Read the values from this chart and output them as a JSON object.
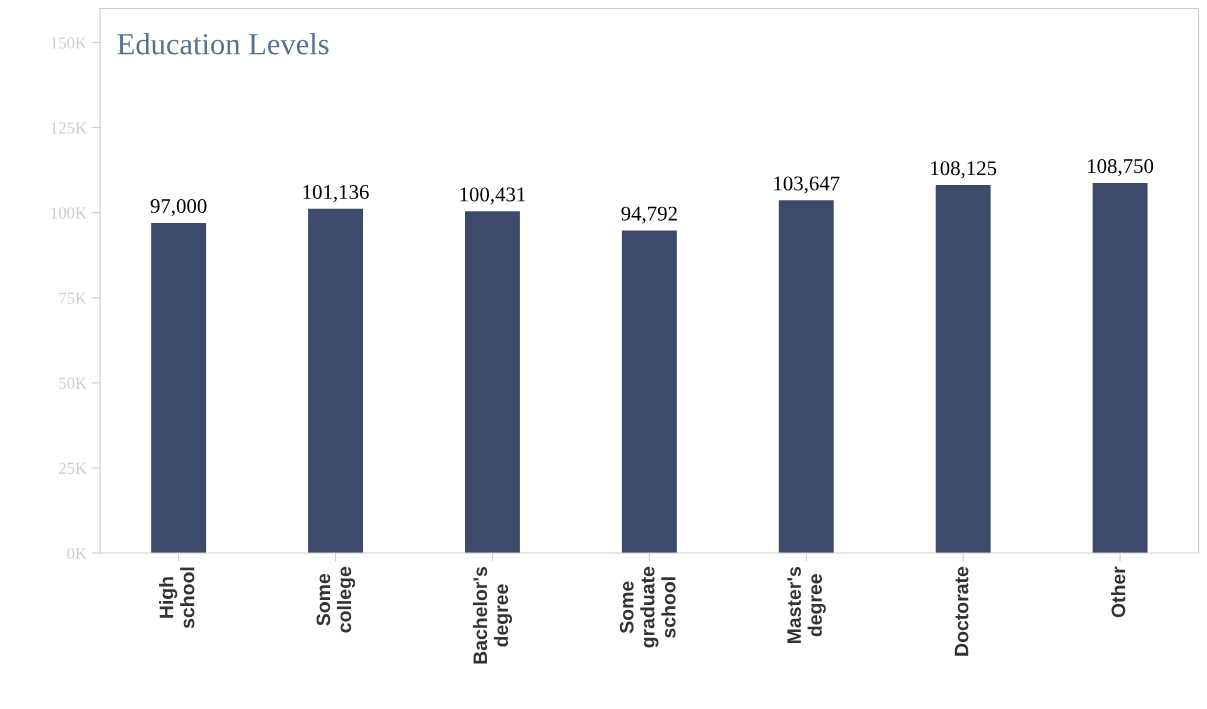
{
  "chart_data": {
    "type": "bar",
    "title": "Education Levels",
    "categories": [
      "High\nschool",
      "Some\ncollege",
      "Bachelor's\ndegree",
      "Some\ngraduate\nschool",
      "Master's\ndegree",
      "Doctorate",
      "Other"
    ],
    "values": [
      97000,
      101136,
      100431,
      94792,
      103647,
      108125,
      108750
    ],
    "color": "#3d4a6b",
    "value_labels": [
      "97,000",
      "101,136",
      "100,431",
      "94,792",
      "103,647",
      "108,125",
      "108,750"
    ],
    "ylim": [
      0,
      160000
    ],
    "yticks": [
      {
        "value": 0,
        "label": "0K"
      },
      {
        "value": 25000,
        "label": "25K"
      },
      {
        "value": 50000,
        "label": "50K"
      },
      {
        "value": 75000,
        "label": "75K"
      },
      {
        "value": 100000,
        "label": "100K"
      },
      {
        "value": 125000,
        "label": "125K"
      },
      {
        "value": 150000,
        "label": "150K"
      }
    ],
    "grid": false
  }
}
